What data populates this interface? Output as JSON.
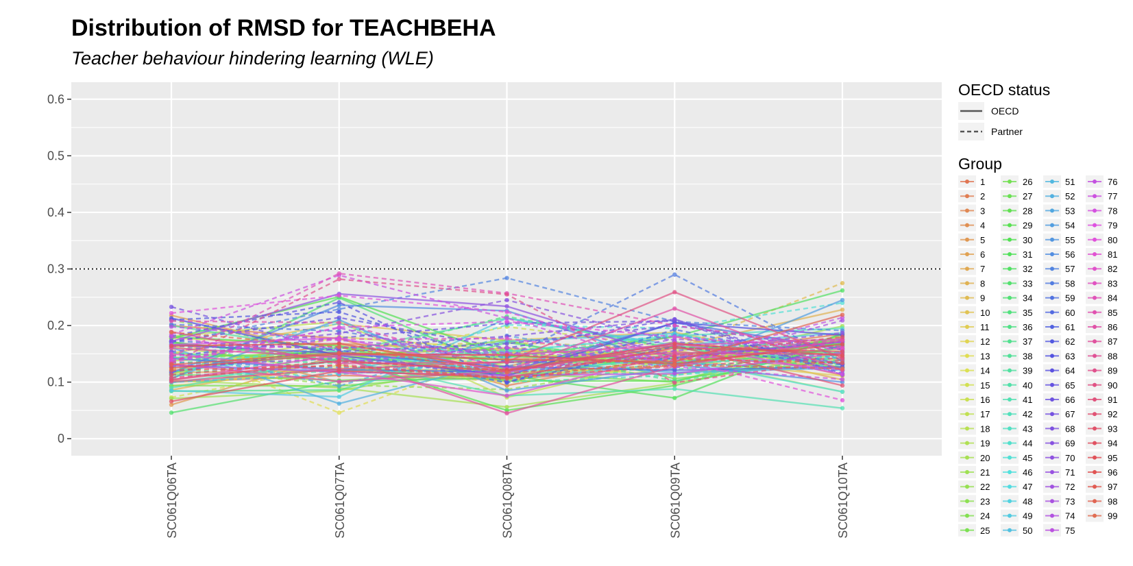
{
  "chart_data": {
    "type": "line",
    "title": "Distribution of RMSD for TEACHBEHA",
    "subtitle": "Teacher behaviour hindering learning (WLE)",
    "xlabel": "",
    "ylabel": "",
    "categories": [
      "SC061Q06TA",
      "SC061Q07TA",
      "SC061Q08TA",
      "SC061Q09TA",
      "SC061Q10TA"
    ],
    "ylim": [
      -0.03,
      0.63
    ],
    "yticks": [
      0,
      0.1,
      0.2,
      0.3,
      0.4,
      0.5,
      0.6
    ],
    "ytick_labels": [
      "0",
      "0.1",
      "0.2",
      "0.3",
      "0.4",
      "0.5",
      "0.6"
    ],
    "reference_line": {
      "y": 0.3,
      "style": "dotted",
      "color": "#000000"
    },
    "grid": true,
    "panel_background": "#ebebeb",
    "legend_placement": "right",
    "legend_linetype": {
      "title": "OECD status",
      "entries": [
        {
          "label": "OECD",
          "dash": "solid"
        },
        {
          "label": "Partner",
          "dash": "dashed"
        }
      ]
    },
    "legend_group_title": "Group",
    "series": [
      {
        "name": "1",
        "status": "OECD",
        "values": [
          0.1,
          0.112,
          0.104,
          0.13,
          0.178
        ]
      },
      {
        "name": "2",
        "status": "OECD",
        "values": [
          0.2,
          0.177,
          0.094,
          0.147,
          0.185
        ]
      },
      {
        "name": "3",
        "status": "OECD",
        "values": [
          0.12,
          0.168,
          0.155,
          0.149,
          0.14
        ]
      },
      {
        "name": "4",
        "status": "OECD",
        "values": [
          0.172,
          0.1,
          0.128,
          0.181,
          0.112
        ]
      },
      {
        "name": "5",
        "status": "OECD",
        "values": [
          0.06,
          0.148,
          0.14,
          0.155,
          0.124
        ]
      },
      {
        "name": "6",
        "status": "OECD",
        "values": [
          0.218,
          0.147,
          0.16,
          0.137,
          0.171
        ]
      },
      {
        "name": "7",
        "status": "OECD",
        "values": [
          0.117,
          0.12,
          0.123,
          0.17,
          0.104
        ]
      },
      {
        "name": "8",
        "status": "OECD",
        "values": [
          0.086,
          0.141,
          0.1,
          0.162,
          0.228
        ]
      },
      {
        "name": "9",
        "status": "Partner",
        "values": [
          0.122,
          0.162,
          0.17,
          0.16,
          0.275
        ]
      },
      {
        "name": "10",
        "status": "OECD",
        "values": [
          0.151,
          0.203,
          0.174,
          0.188,
          0.13
        ]
      },
      {
        "name": "11",
        "status": "OECD",
        "values": [
          0.093,
          0.125,
          0.104,
          0.14,
          0.111
        ]
      },
      {
        "name": "12",
        "status": "OECD",
        "values": [
          0.178,
          0.165,
          0.128,
          0.113,
          0.151
        ]
      },
      {
        "name": "13",
        "status": "Partner",
        "values": [
          0.16,
          0.046,
          0.152,
          0.134,
          0.141
        ]
      },
      {
        "name": "14",
        "status": "OECD",
        "values": [
          0.115,
          0.18,
          0.157,
          0.148,
          0.158
        ]
      },
      {
        "name": "15",
        "status": "Partner",
        "values": [
          0.073,
          0.13,
          0.098,
          0.156,
          0.163
        ]
      },
      {
        "name": "16",
        "status": "Partner",
        "values": [
          0.149,
          0.138,
          0.198,
          0.161,
          0.126
        ]
      },
      {
        "name": "17",
        "status": "OECD",
        "values": [
          0.181,
          0.207,
          0.073,
          0.143,
          0.083
        ]
      },
      {
        "name": "18",
        "status": "OECD",
        "values": [
          0.163,
          0.117,
          0.153,
          0.131,
          0.18
        ]
      },
      {
        "name": "19",
        "status": "OECD",
        "values": [
          0.138,
          0.149,
          0.114,
          0.143,
          0.168
        ]
      },
      {
        "name": "20",
        "status": "OECD",
        "values": [
          0.103,
          0.09,
          0.056,
          0.098,
          0.151
        ]
      },
      {
        "name": "21",
        "status": "OECD",
        "values": [
          0.071,
          0.085,
          0.135,
          0.133,
          0.199
        ]
      },
      {
        "name": "22",
        "status": "Partner",
        "values": [
          0.126,
          0.095,
          0.087,
          0.134,
          0.152
        ]
      },
      {
        "name": "23",
        "status": "Partner",
        "values": [
          0.21,
          0.148,
          0.161,
          0.15,
          0.126
        ]
      },
      {
        "name": "24",
        "status": "OECD",
        "values": [
          0.114,
          0.103,
          0.118,
          0.171,
          0.126
        ]
      },
      {
        "name": "25",
        "status": "OECD",
        "values": [
          0.094,
          0.093,
          0.117,
          0.1,
          0.184
        ]
      },
      {
        "name": "26",
        "status": "OECD",
        "values": [
          0.151,
          0.14,
          0.174,
          0.106,
          0.139
        ]
      },
      {
        "name": "27",
        "status": "OECD",
        "values": [
          0.143,
          0.153,
          0.139,
          0.134,
          0.169
        ]
      },
      {
        "name": "28",
        "status": "OECD",
        "values": [
          0.117,
          0.162,
          0.102,
          0.102,
          0.164
        ]
      },
      {
        "name": "29",
        "status": "OECD",
        "values": [
          0.169,
          0.145,
          0.05,
          0.094,
          0.165
        ]
      },
      {
        "name": "30",
        "status": "OECD",
        "values": [
          0.177,
          0.251,
          0.145,
          0.142,
          0.174
        ]
      },
      {
        "name": "31",
        "status": "OECD",
        "values": [
          0.18,
          0.164,
          0.112,
          0.072,
          0.186
        ]
      },
      {
        "name": "32",
        "status": "OECD",
        "values": [
          0.171,
          0.137,
          0.145,
          0.18,
          0.262
        ]
      },
      {
        "name": "33",
        "status": "OECD",
        "values": [
          0.046,
          0.102,
          0.107,
          0.15,
          0.167
        ]
      },
      {
        "name": "34",
        "status": "OECD",
        "values": [
          0.105,
          0.249,
          0.121,
          0.163,
          0.151
        ]
      },
      {
        "name": "35",
        "status": "Partner",
        "values": [
          0.134,
          0.145,
          0.216,
          0.16,
          0.17
        ]
      },
      {
        "name": "36",
        "status": "OECD",
        "values": [
          0.084,
          0.086,
          0.17,
          0.128,
          0.16
        ]
      },
      {
        "name": "37",
        "status": "Partner",
        "values": [
          0.167,
          0.116,
          0.121,
          0.122,
          0.154
        ]
      },
      {
        "name": "38",
        "status": "Partner",
        "values": [
          0.143,
          0.133,
          0.158,
          0.102,
          0.146
        ]
      },
      {
        "name": "39",
        "status": "OECD",
        "values": [
          0.2,
          0.153,
          0.213,
          0.16,
          0.132
        ]
      },
      {
        "name": "40",
        "status": "Partner",
        "values": [
          0.112,
          0.119,
          0.143,
          0.185,
          0.136
        ]
      },
      {
        "name": "41",
        "status": "OECD",
        "values": [
          0.09,
          0.141,
          0.076,
          0.088,
          0.054
        ]
      },
      {
        "name": "42",
        "status": "Partner",
        "values": [
          0.113,
          0.144,
          0.1,
          0.112,
          0.149
        ]
      },
      {
        "name": "43",
        "status": "OECD",
        "values": [
          0.099,
          0.138,
          0.154,
          0.182,
          0.195
        ]
      },
      {
        "name": "44",
        "status": "Partner",
        "values": [
          0.146,
          0.101,
          0.121,
          0.113,
          0.131
        ]
      },
      {
        "name": "45",
        "status": "Partner",
        "values": [
          0.154,
          0.116,
          0.201,
          0.195,
          0.24
        ]
      },
      {
        "name": "46",
        "status": "OECD",
        "values": [
          0.119,
          0.154,
          0.118,
          0.141,
          0.083
        ]
      },
      {
        "name": "47",
        "status": "Partner",
        "values": [
          0.128,
          0.162,
          0.154,
          0.183,
          0.152
        ]
      },
      {
        "name": "48",
        "status": "Partner",
        "values": [
          0.14,
          0.204,
          0.104,
          0.134,
          0.143
        ]
      },
      {
        "name": "49",
        "status": "OECD",
        "values": [
          0.085,
          0.074,
          0.213,
          0.165,
          0.187
        ]
      },
      {
        "name": "50",
        "status": "OECD",
        "values": [
          0.129,
          0.119,
          0.172,
          0.186,
          0.12
        ]
      },
      {
        "name": "51",
        "status": "Partner",
        "values": [
          0.1,
          0.114,
          0.136,
          0.165,
          0.176
        ]
      },
      {
        "name": "52",
        "status": "OECD",
        "values": [
          0.161,
          0.062,
          0.139,
          0.117,
          0.125
        ]
      },
      {
        "name": "53",
        "status": "Partner",
        "values": [
          0.153,
          0.093,
          0.182,
          0.134,
          0.121
        ]
      },
      {
        "name": "54",
        "status": "OECD",
        "values": [
          0.107,
          0.21,
          0.085,
          0.124,
          0.245
        ]
      },
      {
        "name": "55",
        "status": "Partner",
        "values": [
          0.135,
          0.126,
          0.128,
          0.182,
          0.141
        ]
      },
      {
        "name": "56",
        "status": "OECD",
        "values": [
          0.116,
          0.236,
          0.226,
          0.131,
          0.1
        ]
      },
      {
        "name": "57",
        "status": "Partner",
        "values": [
          0.17,
          0.229,
          0.284,
          0.207,
          0.191
        ]
      },
      {
        "name": "58",
        "status": "Partner",
        "values": [
          0.202,
          0.19,
          0.143,
          0.29,
          0.137
        ]
      },
      {
        "name": "59",
        "status": "OECD",
        "values": [
          0.142,
          0.122,
          0.118,
          0.205,
          0.159
        ]
      },
      {
        "name": "60",
        "status": "Partner",
        "values": [
          0.173,
          0.157,
          0.099,
          0.193,
          0.132
        ]
      },
      {
        "name": "61",
        "status": "OECD",
        "values": [
          0.166,
          0.151,
          0.127,
          0.121,
          0.127
        ]
      },
      {
        "name": "62",
        "status": "Partner",
        "values": [
          0.21,
          0.224,
          0.135,
          0.142,
          0.172
        ]
      },
      {
        "name": "63",
        "status": "OECD",
        "values": [
          0.213,
          0.147,
          0.111,
          0.205,
          0.183
        ]
      },
      {
        "name": "64",
        "status": "Partner",
        "values": [
          0.181,
          0.241,
          0.1,
          0.163,
          0.131
        ]
      },
      {
        "name": "65",
        "status": "Partner",
        "values": [
          0.172,
          0.214,
          0.16,
          0.211,
          0.115
        ]
      },
      {
        "name": "66",
        "status": "Partner",
        "values": [
          0.146,
          0.178,
          0.204,
          0.208,
          0.113
        ]
      },
      {
        "name": "67",
        "status": "Partner",
        "values": [
          0.233,
          0.154,
          0.168,
          0.2,
          0.157
        ]
      },
      {
        "name": "68",
        "status": "Partner",
        "values": [
          0.118,
          0.16,
          0.181,
          0.211,
          0.121
        ]
      },
      {
        "name": "69",
        "status": "Partner",
        "values": [
          0.154,
          0.186,
          0.245,
          0.172,
          0.133
        ]
      },
      {
        "name": "70",
        "status": "OECD",
        "values": [
          0.172,
          0.256,
          0.234,
          0.144,
          0.171
        ]
      },
      {
        "name": "71",
        "status": "Partner",
        "values": [
          0.128,
          0.142,
          0.114,
          0.155,
          0.187
        ]
      },
      {
        "name": "72",
        "status": "Partner",
        "values": [
          0.137,
          0.196,
          0.125,
          0.176,
          0.163
        ]
      },
      {
        "name": "73",
        "status": "Partner",
        "values": [
          0.163,
          0.162,
          0.15,
          0.128,
          0.209
        ]
      },
      {
        "name": "74",
        "status": "Partner",
        "values": [
          0.198,
          0.174,
          0.152,
          0.141,
          0.171
        ]
      },
      {
        "name": "75",
        "status": "OECD",
        "values": [
          0.13,
          0.118,
          0.112,
          0.115,
          0.152
        ]
      },
      {
        "name": "76",
        "status": "Partner",
        "values": [
          0.18,
          0.134,
          0.161,
          0.137,
          0.214
        ]
      },
      {
        "name": "77",
        "status": "Partner",
        "values": [
          0.184,
          0.289,
          0.213,
          0.127,
          0.105
        ]
      },
      {
        "name": "78",
        "status": "OECD",
        "values": [
          0.166,
          0.178,
          0.117,
          0.17,
          0.114
        ]
      },
      {
        "name": "79",
        "status": "Partner",
        "values": [
          0.134,
          0.197,
          0.207,
          0.18,
          0.158
        ]
      },
      {
        "name": "80",
        "status": "Partner",
        "values": [
          0.222,
          0.253,
          0.224,
          0.141,
          0.068
        ]
      },
      {
        "name": "81",
        "status": "Partner",
        "values": [
          0.14,
          0.176,
          0.177,
          0.14,
          0.16
        ]
      },
      {
        "name": "82",
        "status": "OECD",
        "values": [
          0.15,
          0.118,
          0.076,
          0.15,
          0.122
        ]
      },
      {
        "name": "83",
        "status": "OECD",
        "values": [
          0.104,
          0.148,
          0.148,
          0.165,
          0.176
        ]
      },
      {
        "name": "84",
        "status": "Partner",
        "values": [
          0.144,
          0.292,
          0.257,
          0.2,
          0.161
        ]
      },
      {
        "name": "85",
        "status": "Partner",
        "values": [
          0.208,
          0.205,
          0.123,
          0.148,
          0.175
        ]
      },
      {
        "name": "86",
        "status": "OECD",
        "values": [
          0.132,
          0.101,
          0.12,
          0.23,
          0.121
        ]
      },
      {
        "name": "87",
        "status": "OECD",
        "values": [
          0.16,
          0.144,
          0.045,
          0.128,
          0.174
        ]
      },
      {
        "name": "88",
        "status": "OECD",
        "values": [
          0.189,
          0.133,
          0.135,
          0.152,
          0.149
        ]
      },
      {
        "name": "89",
        "status": "Partner",
        "values": [
          0.133,
          0.282,
          0.255,
          0.099,
          0.139
        ]
      },
      {
        "name": "90",
        "status": "OECD",
        "values": [
          0.101,
          0.123,
          0.136,
          0.259,
          0.143
        ]
      },
      {
        "name": "91",
        "status": "Partner",
        "values": [
          0.108,
          0.131,
          0.108,
          0.128,
          0.143
        ]
      },
      {
        "name": "92",
        "status": "OECD",
        "values": [
          0.104,
          0.138,
          0.119,
          0.164,
          0.094
        ]
      },
      {
        "name": "93",
        "status": "Partner",
        "values": [
          0.113,
          0.137,
          0.121,
          0.146,
          0.18
        ]
      },
      {
        "name": "94",
        "status": "OECD",
        "values": [
          0.066,
          0.12,
          0.108,
          0.16,
          0.154
        ]
      },
      {
        "name": "95",
        "status": "OECD",
        "values": [
          0.164,
          0.168,
          0.121,
          0.168,
          0.147
        ]
      },
      {
        "name": "96",
        "status": "OECD",
        "values": [
          0.125,
          0.15,
          0.148,
          0.132,
          0.167
        ]
      },
      {
        "name": "97",
        "status": "Partner",
        "values": [
          0.121,
          0.129,
          0.106,
          0.141,
          0.134
        ]
      },
      {
        "name": "98",
        "status": "OECD",
        "values": [
          0.131,
          0.152,
          0.14,
          0.136,
          0.219
        ]
      },
      {
        "name": "99",
        "status": "Partner",
        "values": [
          0.188,
          0.162,
          0.117,
          0.13,
          0.124
        ]
      }
    ]
  }
}
